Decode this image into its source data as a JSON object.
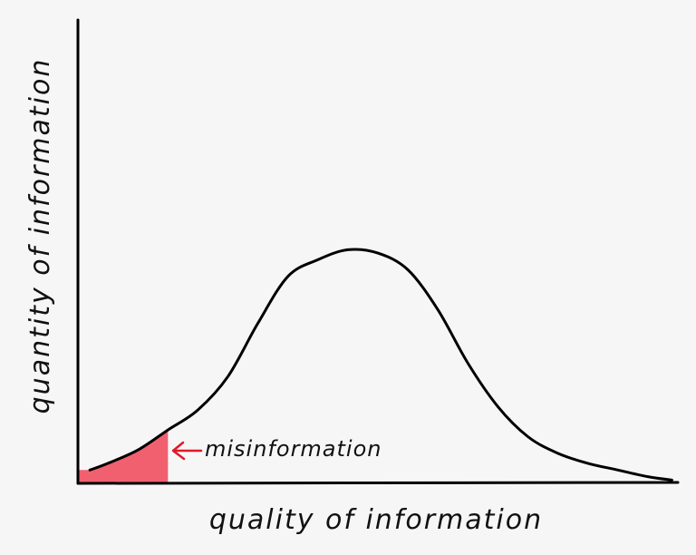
{
  "chart_data": {
    "type": "area",
    "title": "",
    "xlabel": "quality of information",
    "ylabel": "quantity of information",
    "xlim": [
      0,
      100
    ],
    "ylim": [
      0,
      100
    ],
    "grid": false,
    "legend": "none",
    "series": [
      {
        "x": [
          2,
          5,
          10,
          15,
          20,
          25,
          30,
          35,
          40,
          45,
          50,
          55,
          60,
          65,
          70,
          75,
          80,
          85,
          90,
          95,
          99
        ],
        "y": [
          4,
          6,
          10,
          16,
          22,
          32,
          48,
          62,
          67,
          70,
          69,
          64,
          52,
          36,
          23,
          14,
          9,
          6,
          4,
          2,
          1
        ]
      }
    ],
    "highlight": {
      "label": "misinformation",
      "x_from": 0,
      "x_to": 15,
      "color": "#f0606f",
      "label_color": "#e0182b"
    },
    "colors": {
      "curve": "#000000",
      "axis": "#000000",
      "background": "#f6f6f6"
    }
  }
}
